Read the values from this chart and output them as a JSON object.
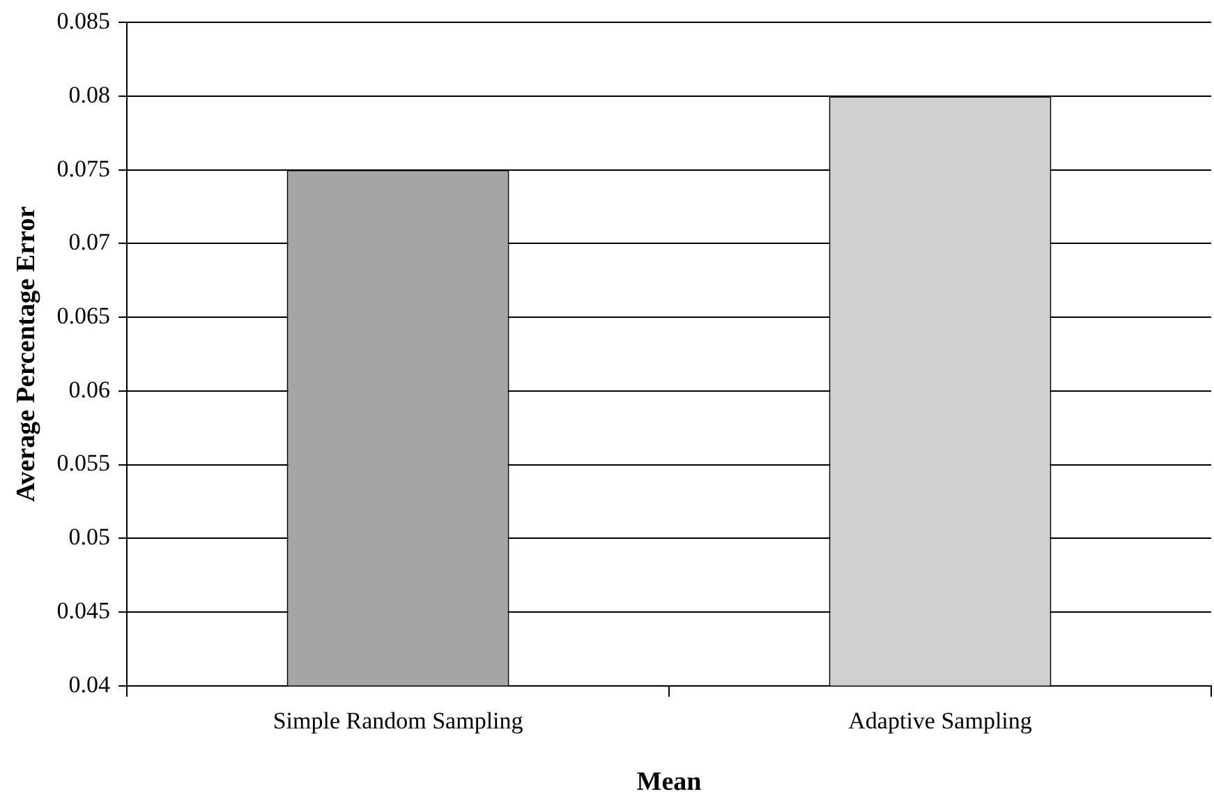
{
  "chart_data": {
    "type": "bar",
    "xlabel": "Mean",
    "ylabel": "Average Percentage Error",
    "categories": [
      "Simple Random Sampling",
      "Adaptive Sampling"
    ],
    "values": [
      0.075,
      0.08
    ],
    "colors": [
      "#a6a6a6",
      "#cfcfcf"
    ],
    "ylim": [
      0.04,
      0.085
    ],
    "yticks": [
      0.04,
      0.045,
      0.05,
      0.055,
      0.06,
      0.065,
      0.07,
      0.075,
      0.08,
      0.085
    ],
    "grid": "y"
  }
}
